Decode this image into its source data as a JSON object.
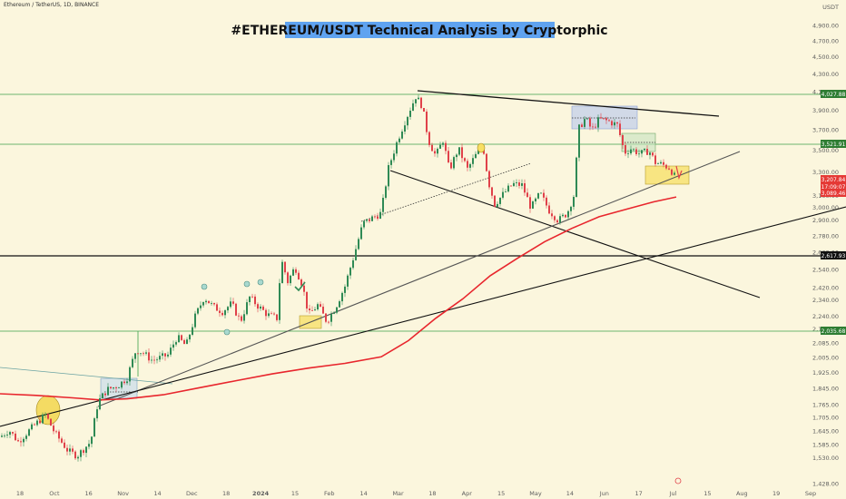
{
  "header": {
    "symbol": "Ethereum / TetherUS, 1D, BINANCE",
    "title": "#ETHEREUM/USDT Technical Analysis by Cryptorphic",
    "currency": "USDT"
  },
  "colors": {
    "background": "#fbf6dd",
    "candle_up": "#2f8a55",
    "candle_down": "#e0414a",
    "moving_average": "#e8262d",
    "trend_lines": "#111111",
    "horizontal_levels": "#3da24a",
    "title_highlight": "#5fa3f0",
    "highlight_box": "#f7df63"
  },
  "badges": [
    {
      "label": "4,027.88",
      "color": "#2e7d32"
    },
    {
      "label": "3,521.91",
      "color": "#2e7d32"
    },
    {
      "label": "3,207.84",
      "color": "#e53935"
    },
    {
      "label": "17:09:07",
      "color": "#e53935"
    },
    {
      "label": "3,089.46",
      "color": "#e53935"
    },
    {
      "label": "2,617.93",
      "color": "#111111"
    },
    {
      "label": "2,035.68",
      "color": "#2e7d32"
    }
  ],
  "chart_data": {
    "type": "candlestick",
    "title": "#ETHEREUM/USDT Technical Analysis by Cryptorphic",
    "y_scale": "log",
    "ylim": [
      1405,
      5250
    ],
    "y_ticks": [
      "4,900.00",
      "4,700.00",
      "4,500.00",
      "4,300.00",
      "4,100.00",
      "3,900.00",
      "3,700.00",
      "3,500.00",
      "3,300.00",
      "3,100.00",
      "3,000.00",
      "2,900.00",
      "2,780.00",
      "2,660.00",
      "2,540.00",
      "2,420.00",
      "2,340.00",
      "2,240.00",
      "2,165.00",
      "2,085.00",
      "2,005.00",
      "1,925.00",
      "1,845.00",
      "1,765.00",
      "1,705.00",
      "1,645.00",
      "1,585.00",
      "1,530.00",
      "1,428.00"
    ],
    "x_ticks": [
      "18",
      "Oct",
      "16",
      "Nov",
      "14",
      "Dec",
      "18",
      "2024",
      "15",
      "Feb",
      "14",
      "Mar",
      "18",
      "Apr",
      "15",
      "May",
      "14",
      "Jun",
      "17",
      "Jul",
      "15",
      "Aug",
      "19",
      "Sep"
    ],
    "price_path": [
      [
        0,
        1620
      ],
      [
        10,
        1650
      ],
      [
        20,
        1600
      ],
      [
        35,
        1660
      ],
      [
        50,
        1720
      ],
      [
        60,
        1640
      ],
      [
        75,
        1560
      ],
      [
        85,
        1540
      ],
      [
        100,
        1600
      ],
      [
        108,
        1780
      ],
      [
        118,
        1840
      ],
      [
        130,
        1860
      ],
      [
        140,
        1900
      ],
      [
        150,
        2050
      ],
      [
        158,
        2030
      ],
      [
        168,
        1990
      ],
      [
        185,
        2020
      ],
      [
        195,
        2120
      ],
      [
        205,
        2070
      ],
      [
        215,
        2240
      ],
      [
        225,
        2360
      ],
      [
        235,
        2300
      ],
      [
        245,
        2270
      ],
      [
        255,
        2320
      ],
      [
        265,
        2210
      ],
      [
        275,
        2360
      ],
      [
        285,
        2300
      ],
      [
        295,
        2250
      ],
      [
        305,
        2230
      ],
      [
        310,
        2610
      ],
      [
        317,
        2460
      ],
      [
        325,
        2560
      ],
      [
        333,
        2440
      ],
      [
        340,
        2250
      ],
      [
        350,
        2310
      ],
      [
        360,
        2210
      ],
      [
        370,
        2300
      ],
      [
        380,
        2430
      ],
      [
        390,
        2640
      ],
      [
        400,
        2880
      ],
      [
        410,
        2920
      ],
      [
        420,
        2960
      ],
      [
        428,
        3340
      ],
      [
        438,
        3600
      ],
      [
        448,
        3830
      ],
      [
        458,
        4050
      ],
      [
        465,
        3950
      ],
      [
        472,
        3600
      ],
      [
        480,
        3450
      ],
      [
        488,
        3600
      ],
      [
        495,
        3320
      ],
      [
        505,
        3520
      ],
      [
        515,
        3330
      ],
      [
        525,
        3470
      ],
      [
        532,
        3550
      ],
      [
        538,
        3220
      ],
      [
        545,
        3030
      ],
      [
        555,
        3120
      ],
      [
        565,
        3200
      ],
      [
        575,
        3190
      ],
      [
        585,
        3000
      ],
      [
        595,
        3120
      ],
      [
        605,
        2980
      ],
      [
        615,
        2900
      ],
      [
        625,
        2960
      ],
      [
        632,
        3100
      ],
      [
        638,
        3720
      ],
      [
        645,
        3820
      ],
      [
        652,
        3700
      ],
      [
        660,
        3810
      ],
      [
        670,
        3790
      ],
      [
        680,
        3750
      ],
      [
        688,
        3480
      ],
      [
        695,
        3520
      ],
      [
        705,
        3470
      ],
      [
        715,
        3500
      ],
      [
        722,
        3390
      ],
      [
        730,
        3370
      ],
      [
        738,
        3340
      ],
      [
        745,
        3240
      ]
    ],
    "moving_average": [
      [
        0,
        1820
      ],
      [
        40,
        1812
      ],
      [
        80,
        1800
      ],
      [
        110,
        1790
      ],
      [
        140,
        1795
      ],
      [
        180,
        1815
      ],
      [
        220,
        1850
      ],
      [
        260,
        1885
      ],
      [
        300,
        1920
      ],
      [
        340,
        1950
      ],
      [
        380,
        1975
      ],
      [
        420,
        2010
      ],
      [
        450,
        2100
      ],
      [
        480,
        2230
      ],
      [
        510,
        2350
      ],
      [
        540,
        2500
      ],
      [
        570,
        2620
      ],
      [
        600,
        2740
      ],
      [
        630,
        2840
      ],
      [
        660,
        2930
      ],
      [
        690,
        2990
      ],
      [
        720,
        3050
      ],
      [
        745,
        3090
      ]
    ],
    "last_price": 3207.84,
    "levels": [
      4027.88,
      3521.91,
      2617.93,
      2035.68
    ]
  }
}
